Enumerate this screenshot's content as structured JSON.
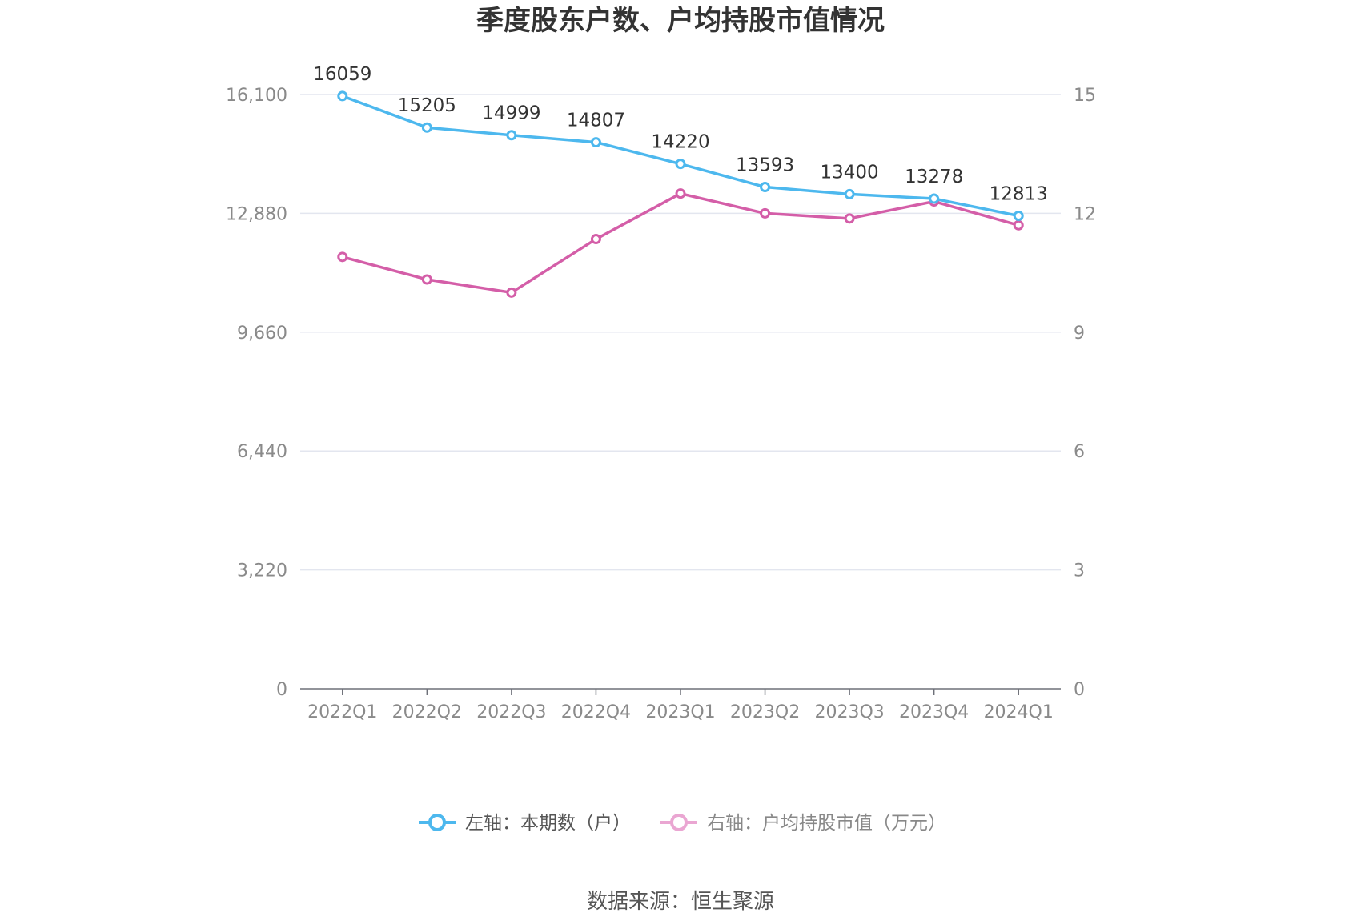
{
  "chart_data": {
    "type": "line",
    "title": "季度股东户数、户均持股市值情况",
    "categories": [
      "2022Q1",
      "2022Q2",
      "2022Q3",
      "2022Q4",
      "2023Q1",
      "2023Q2",
      "2023Q3",
      "2023Q4",
      "2024Q1"
    ],
    "left_axis": {
      "range": [
        0,
        16100
      ],
      "ticks": [
        0,
        3220,
        6440,
        9660,
        12880,
        16100
      ],
      "tick_labels": [
        "0",
        "3,220",
        "6,440",
        "9,660",
        "12,880",
        "16,100"
      ]
    },
    "right_axis": {
      "range": [
        0,
        15
      ],
      "ticks": [
        0,
        3,
        6,
        9,
        12,
        15
      ],
      "tick_labels": [
        "0",
        "3",
        "6",
        "9",
        "12",
        "15"
      ]
    },
    "series": [
      {
        "name": "左轴：本期数（户）",
        "axis": "left",
        "color": "#4db8ee",
        "values": [
          16059,
          15205,
          14999,
          14807,
          14220,
          13593,
          13400,
          13278,
          12813
        ],
        "labels": [
          "16059",
          "15205",
          "14999",
          "14807",
          "14220",
          "13593",
          "13400",
          "13278",
          "12813"
        ]
      },
      {
        "name": "右轴：户均持股市值（万元）",
        "axis": "right",
        "color": "#d45ea8",
        "legend_color": "#eaa6d2",
        "values": [
          10.9,
          10.33,
          10.0,
          11.35,
          12.5,
          12.0,
          11.87,
          12.3,
          11.7
        ]
      }
    ],
    "grid": true,
    "legend_position": "bottom"
  },
  "source": "数据来源：恒生聚源"
}
